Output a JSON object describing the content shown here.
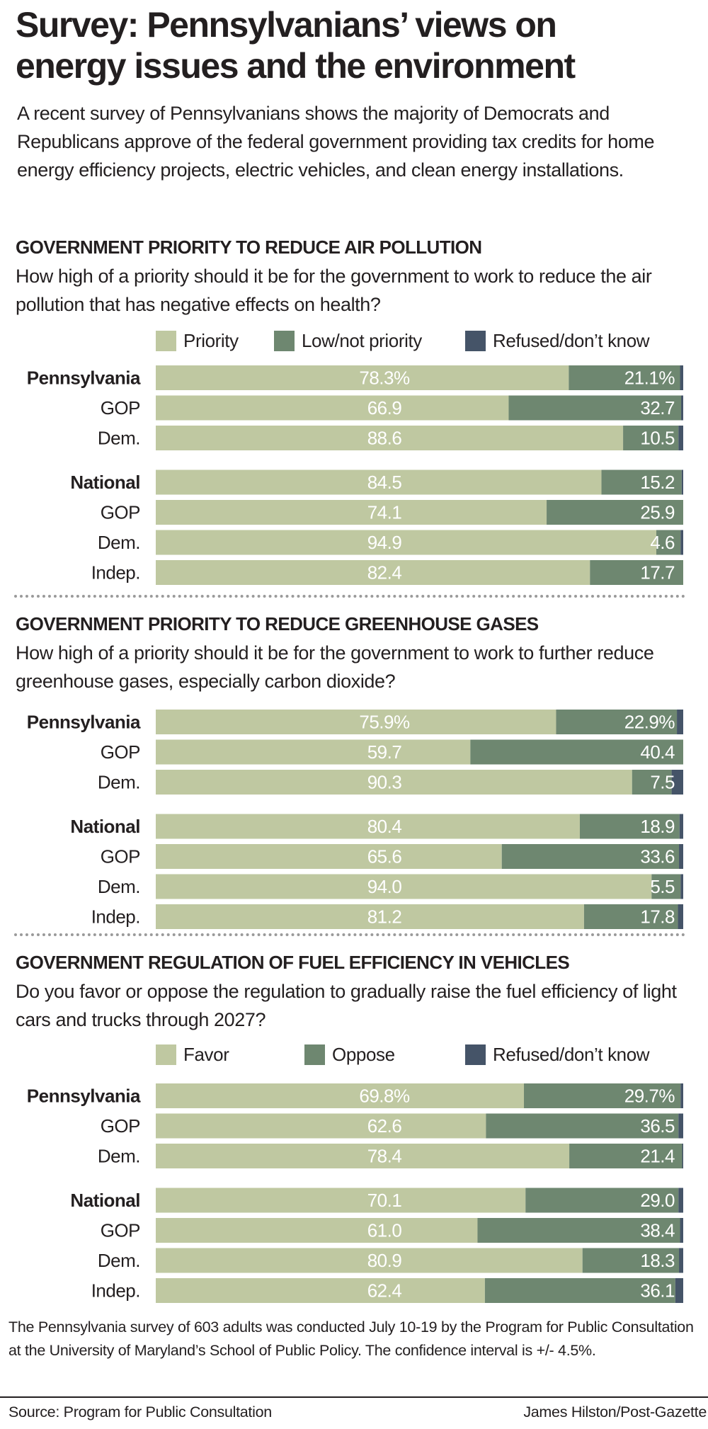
{
  "header": {
    "title_line1": "Survey: Pennsylvanians’ views on",
    "title_line2": "energy issues and the environment",
    "intro": "A recent survey of Pennsylvanians shows the majority of Democrats and Republicans approve of the federal government providing tax credits for home energy efficiency projects, electric vehicles, and clean energy installations."
  },
  "colors": {
    "favor": "#bfc8a1",
    "oppose": "#6e8770",
    "refused": "#455468",
    "text": "#231f20"
  },
  "chart_data": [
    {
      "type": "bar",
      "orientation": "horizontal-stacked-100",
      "title": "GOVERNMENT PRIORITY TO REDUCE AIR POLLUTION",
      "question": "How high of a priority should it be for the government to work to reduce the air pollution that has negative effects on health?",
      "legend": [
        "Priority",
        "Low/not priority",
        "Refused/don’t know"
      ],
      "legend_position": "top",
      "groups": [
        {
          "name": "Pennsylvania",
          "rows": [
            {
              "label": "Pennsylvania",
              "bold": true,
              "values": [
                78.3,
                21.1,
                0.6
              ],
              "labels": [
                "78.3%",
                "21.1%"
              ]
            },
            {
              "label": "GOP",
              "bold": false,
              "values": [
                66.9,
                32.7,
                0.4
              ],
              "labels": [
                "66.9",
                "32.7"
              ]
            },
            {
              "label": "Dem.",
              "bold": false,
              "values": [
                88.6,
                10.5,
                0.9
              ],
              "labels": [
                "88.6",
                "10.5"
              ]
            }
          ]
        },
        {
          "name": "National",
          "rows": [
            {
              "label": "National",
              "bold": true,
              "values": [
                84.5,
                15.2,
                0.3
              ],
              "labels": [
                "84.5",
                "15.2"
              ]
            },
            {
              "label": "GOP",
              "bold": false,
              "values": [
                74.1,
                25.9,
                0.0
              ],
              "labels": [
                "74.1",
                "25.9"
              ]
            },
            {
              "label": "Dem.",
              "bold": false,
              "values": [
                94.9,
                4.6,
                0.5
              ],
              "labels": [
                "94.9",
                "4.6"
              ]
            },
            {
              "label": "Indep.",
              "bold": false,
              "values": [
                82.4,
                17.7,
                0.0
              ],
              "labels": [
                "82.4",
                "17.7"
              ]
            }
          ]
        }
      ]
    },
    {
      "type": "bar",
      "orientation": "horizontal-stacked-100",
      "title": "GOVERNMENT PRIORITY TO REDUCE GREENHOUSE GASES",
      "question": "How high of a priority should it be for the government to work to further reduce greenhouse gases, especially carbon dioxide?",
      "legend": [],
      "groups": [
        {
          "name": "Pennsylvania",
          "rows": [
            {
              "label": "Pennsylvania",
              "bold": true,
              "values": [
                75.9,
                22.9,
                1.2
              ],
              "labels": [
                "75.9%",
                "22.9%"
              ]
            },
            {
              "label": "GOP",
              "bold": false,
              "values": [
                59.7,
                40.4,
                0.0
              ],
              "labels": [
                "59.7",
                "40.4"
              ]
            },
            {
              "label": "Dem.",
              "bold": false,
              "values": [
                90.3,
                7.5,
                2.2
              ],
              "labels": [
                "90.3",
                "7.5"
              ]
            }
          ]
        },
        {
          "name": "National",
          "rows": [
            {
              "label": "National",
              "bold": true,
              "values": [
                80.4,
                18.9,
                0.7
              ],
              "labels": [
                "80.4",
                "18.9"
              ]
            },
            {
              "label": "GOP",
              "bold": false,
              "values": [
                65.6,
                33.6,
                0.8
              ],
              "labels": [
                "65.6",
                "33.6"
              ]
            },
            {
              "label": "Dem.",
              "bold": false,
              "values": [
                94.0,
                5.5,
                0.5
              ],
              "labels": [
                "94.0",
                "5.5"
              ]
            },
            {
              "label": "Indep.",
              "bold": false,
              "values": [
                81.2,
                17.8,
                1.0
              ],
              "labels": [
                "81.2",
                "17.8"
              ]
            }
          ]
        }
      ]
    },
    {
      "type": "bar",
      "orientation": "horizontal-stacked-100",
      "title": "GOVERNMENT REGULATION OF FUEL EFFICIENCY IN VEHICLES",
      "question": "Do you favor or oppose the regulation to gradually raise the fuel efficiency of light cars and trucks through 2027?",
      "legend": [
        "Favor",
        "Oppose",
        "Refused/don’t know"
      ],
      "legend_position": "top",
      "groups": [
        {
          "name": "Pennsylvania",
          "rows": [
            {
              "label": "Pennsylvania",
              "bold": true,
              "values": [
                69.8,
                29.7,
                0.5
              ],
              "labels": [
                "69.8%",
                "29.7%"
              ]
            },
            {
              "label": "GOP",
              "bold": false,
              "values": [
                62.6,
                36.5,
                0.9
              ],
              "labels": [
                "62.6",
                "36.5"
              ]
            },
            {
              "label": "Dem.",
              "bold": false,
              "values": [
                78.4,
                21.4,
                0.2
              ],
              "labels": [
                "78.4",
                "21.4"
              ]
            }
          ]
        },
        {
          "name": "National",
          "rows": [
            {
              "label": "National",
              "bold": true,
              "values": [
                70.1,
                29.0,
                0.9
              ],
              "labels": [
                "70.1",
                "29.0"
              ]
            },
            {
              "label": "GOP",
              "bold": false,
              "values": [
                61.0,
                38.4,
                0.6
              ],
              "labels": [
                "61.0",
                "38.4"
              ]
            },
            {
              "label": "Dem.",
              "bold": false,
              "values": [
                80.9,
                18.3,
                0.8
              ],
              "labels": [
                "80.9",
                "18.3"
              ]
            },
            {
              "label": "Indep.",
              "bold": false,
              "values": [
                62.4,
                36.1,
                1.5
              ],
              "labels": [
                "62.4",
                "36.1"
              ]
            }
          ]
        }
      ]
    }
  ],
  "footer": {
    "note": "The Pennsylvania survey of 603 adults was conducted July 10-19 by the Program for Public Consultation at the University of Maryland’s School of Public Policy. The confidence interval is +/- 4.5%.",
    "source": "Source: Program for Public Consultation",
    "credit": "James Hilston/Post-Gazette"
  }
}
